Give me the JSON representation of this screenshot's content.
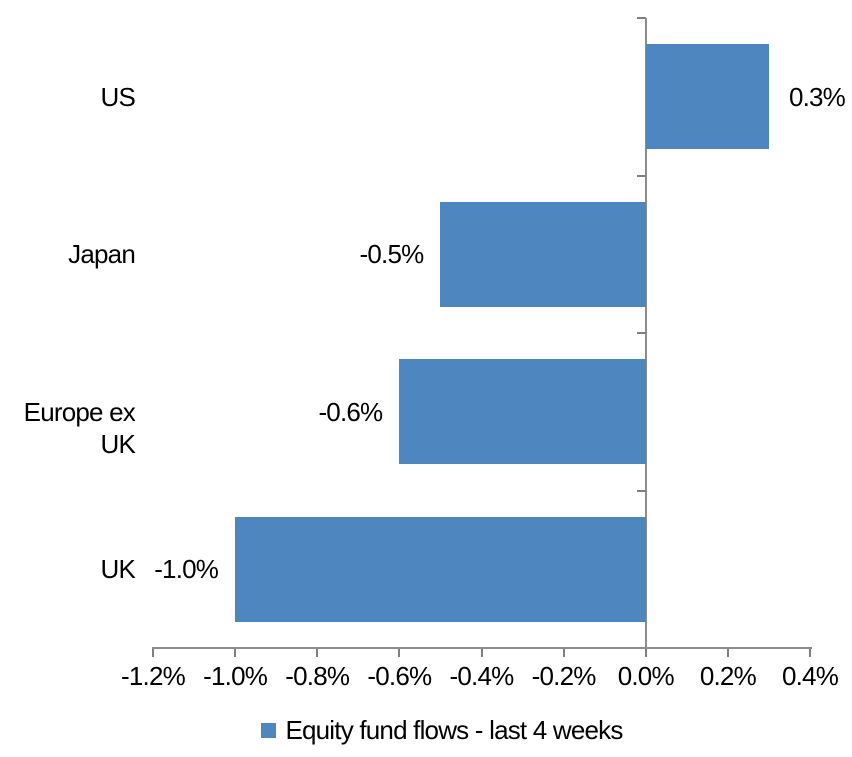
{
  "chart_data": {
    "type": "bar",
    "orientation": "horizontal",
    "title": "",
    "categories": [
      "US",
      "Japan",
      "Europe ex UK",
      "UK"
    ],
    "values": [
      0.3,
      -0.5,
      -0.6,
      -1.0
    ],
    "data_labels": [
      "0.3%",
      "-0.5%",
      "-0.6%",
      "-1.0%"
    ],
    "series": [
      {
        "name": "Equity fund flows - last 4 weeks",
        "values": [
          0.3,
          -0.5,
          -0.6,
          -1.0
        ]
      }
    ],
    "x_axis": {
      "min": -1.2,
      "max": 0.4,
      "step": 0.2,
      "tick_labels": [
        "-1.2%",
        "-1.0%",
        "-0.8%",
        "-0.6%",
        "-0.4%",
        "-0.2%",
        "0.0%",
        "0.2%",
        "0.4%"
      ]
    },
    "y_axis": {
      "label": ""
    },
    "legend": {
      "position": "bottom",
      "label": "Equity fund flows - last 4 weeks"
    },
    "grid": false,
    "colors": {
      "bar": "#4E86BF",
      "axis_line": "#8C8C8C",
      "tick_mark": "#7F7F7F",
      "text": "#000000",
      "background": "#FFFFFF"
    }
  }
}
